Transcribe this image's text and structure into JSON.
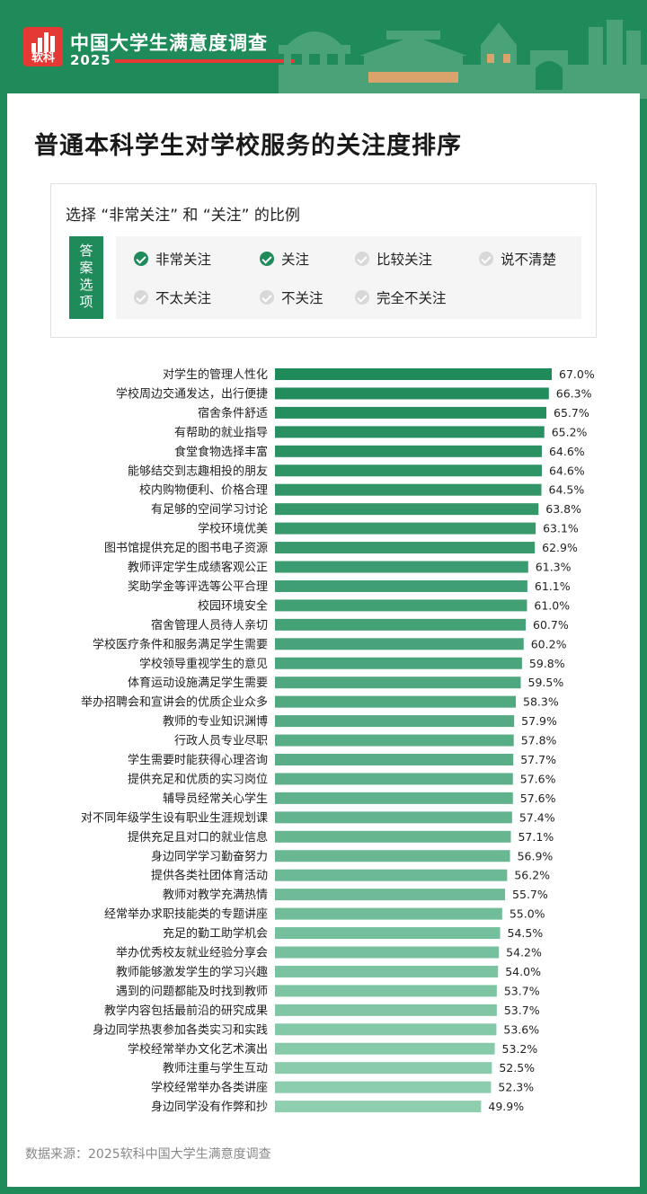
{
  "header": {
    "logo_text": "软科",
    "title": "中国大学生满意度调查",
    "year": "2025",
    "colors": {
      "brand_green": "#1f8a5a",
      "logo_red": "#e53935"
    }
  },
  "page_title": "普通本科学生对学校服务的关注度排序",
  "options": {
    "title": "选择 “非常关注” 和 “关注” 的比例",
    "label_chars": [
      "答",
      "案",
      "选",
      "项"
    ],
    "items": [
      {
        "label": "非常关注",
        "checked": true
      },
      {
        "label": "关注",
        "checked": true
      },
      {
        "label": "比较关注",
        "checked": false
      },
      {
        "label": "说不清楚",
        "checked": false
      },
      {
        "label": "不太关注",
        "checked": false
      },
      {
        "label": "不关注",
        "checked": false
      },
      {
        "label": "完全不关注",
        "checked": false
      }
    ]
  },
  "chart_data": {
    "type": "bar",
    "orientation": "horizontal",
    "title": "普通本科学生对学校服务的关注度排序",
    "categories": [
      "对学生的管理人性化",
      "学校周边交通发达，出行便捷",
      "宿舍条件舒适",
      "有帮助的就业指导",
      "食堂食物选择丰富",
      "能够结交到志趣相投的朋友",
      "校内购物便利、价格合理",
      "有足够的空间学习讨论",
      "学校环境优美",
      "图书馆提供充足的图书电子资源",
      "教师评定学生成绩客观公正",
      "奖助学金等评选等公平合理",
      "校园环境安全",
      "宿舍管理人员待人亲切",
      "学校医疗条件和服务满足学生需要",
      "学校领导重视学生的意见",
      "体育运动设施满足学生需要",
      "举办招聘会和宣讲会的优质企业众多",
      "教师的专业知识渊博",
      "行政人员专业尽职",
      "学生需要时能获得心理咨询",
      "提供充足和优质的实习岗位",
      "辅导员经常关心学生",
      "对不同年级学生设有职业生涯规划课",
      "提供充足且对口的就业信息",
      "身边同学学习勤奋努力",
      "提供各类社团体育活动",
      "教师对教学充满热情",
      "经常举办求职技能类的专题讲座",
      "充足的勤工助学机会",
      "举办优秀校友就业经验分享会",
      "教师能够激发学生的学习兴趣",
      "遇到的问题都能及时找到教师",
      "教学内容包括最前沿的研究成果",
      "身边同学热衷参加各类实习和实践",
      "学校经常举办文化艺术演出",
      "教师注重与学生互动",
      "学校经常举办各类讲座",
      "身边同学没有作弊和抄"
    ],
    "values": [
      67.0,
      66.3,
      65.7,
      65.2,
      64.6,
      64.6,
      64.5,
      63.8,
      63.1,
      62.9,
      61.3,
      61.1,
      61.0,
      60.7,
      60.2,
      59.8,
      59.5,
      58.3,
      57.9,
      57.8,
      57.7,
      57.6,
      57.6,
      57.4,
      57.1,
      56.9,
      56.2,
      55.7,
      55.0,
      54.5,
      54.2,
      54.0,
      53.7,
      53.7,
      53.6,
      53.2,
      52.5,
      52.3,
      49.9
    ],
    "value_labels": [
      "67.0%",
      "66.3%",
      "65.7%",
      "65.2%",
      "64.6%",
      "64.6%",
      "64.5%",
      "63.8%",
      "63.1%",
      "62.9%",
      "61.3%",
      "61.1%",
      "61.0%",
      "60.7%",
      "60.2%",
      "59.8%",
      "59.5%",
      "58.3%",
      "57.9%",
      "57.8%",
      "57.7%",
      "57.6%",
      "57.6%",
      "57.4%",
      "57.1%",
      "56.9%",
      "56.2%",
      "55.7%",
      "55.0%",
      "54.5%",
      "54.2%",
      "54.0%",
      "53.7%",
      "53.7%",
      "53.6%",
      "53.2%",
      "52.5%",
      "52.3%",
      "49.9%"
    ],
    "unit": "%",
    "xlim": [
      0,
      67
    ],
    "grid": false,
    "legend": false,
    "colors": {
      "dark": "#1f8a5a",
      "light": "#8fcfb0"
    }
  },
  "source": "数据来源：2025软科中国大学生满意度调查"
}
